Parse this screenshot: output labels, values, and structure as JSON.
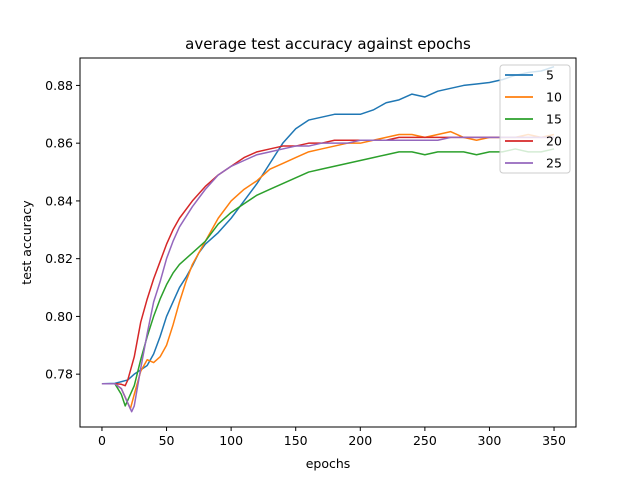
{
  "chart_data": {
    "type": "line",
    "title": "average test accuracy against epochs",
    "xlabel": "epochs",
    "ylabel": "test accuracy",
    "xlim": [
      -17,
      367
    ],
    "ylim": [
      0.7617,
      0.8895
    ],
    "x_ticks": [
      0,
      50,
      100,
      150,
      200,
      250,
      300,
      350
    ],
    "y_ticks": [
      0.78,
      0.8,
      0.82,
      0.84,
      0.86,
      0.88
    ],
    "y_tick_labels": [
      "0.78",
      "0.80",
      "0.82",
      "0.84",
      "0.86",
      "0.88"
    ],
    "x_tick_labels": [
      "0",
      "50",
      "100",
      "150",
      "200",
      "250",
      "300",
      "350"
    ],
    "grid": false,
    "legend_position": "upper right",
    "series": [
      {
        "name": "5",
        "color": "#1f77b4",
        "points": [
          [
            0,
            0.7767
          ],
          [
            10,
            0.7768
          ],
          [
            20,
            0.778
          ],
          [
            25,
            0.78
          ],
          [
            30,
            0.7815
          ],
          [
            35,
            0.783
          ],
          [
            40,
            0.787
          ],
          [
            45,
            0.793
          ],
          [
            50,
            0.8
          ],
          [
            55,
            0.805
          ],
          [
            60,
            0.81
          ],
          [
            65,
            0.8135
          ],
          [
            70,
            0.8175
          ],
          [
            75,
            0.822
          ],
          [
            80,
            0.825
          ],
          [
            90,
            0.829
          ],
          [
            100,
            0.834
          ],
          [
            110,
            0.84
          ],
          [
            120,
            0.846
          ],
          [
            130,
            0.853
          ],
          [
            140,
            0.86
          ],
          [
            150,
            0.865
          ],
          [
            160,
            0.868
          ],
          [
            170,
            0.869
          ],
          [
            180,
            0.87
          ],
          [
            190,
            0.87
          ],
          [
            200,
            0.87
          ],
          [
            210,
            0.8715
          ],
          [
            220,
            0.874
          ],
          [
            230,
            0.875
          ],
          [
            240,
            0.877
          ],
          [
            250,
            0.876
          ],
          [
            260,
            0.878
          ],
          [
            270,
            0.879
          ],
          [
            280,
            0.88
          ],
          [
            290,
            0.8805
          ],
          [
            300,
            0.881
          ],
          [
            310,
            0.882
          ],
          [
            320,
            0.8835
          ],
          [
            330,
            0.8845
          ],
          [
            340,
            0.885
          ],
          [
            350,
            0.8865
          ]
        ]
      },
      {
        "name": "10",
        "color": "#ff7f0e",
        "points": [
          [
            0,
            0.7767
          ],
          [
            10,
            0.7767
          ],
          [
            15,
            0.775
          ],
          [
            20,
            0.77
          ],
          [
            22,
            0.768
          ],
          [
            25,
            0.773
          ],
          [
            30,
            0.781
          ],
          [
            35,
            0.785
          ],
          [
            40,
            0.784
          ],
          [
            45,
            0.786
          ],
          [
            50,
            0.79
          ],
          [
            55,
            0.797
          ],
          [
            60,
            0.805
          ],
          [
            65,
            0.812
          ],
          [
            70,
            0.818
          ],
          [
            80,
            0.826
          ],
          [
            90,
            0.834
          ],
          [
            100,
            0.84
          ],
          [
            110,
            0.844
          ],
          [
            120,
            0.847
          ],
          [
            130,
            0.851
          ],
          [
            140,
            0.853
          ],
          [
            150,
            0.855
          ],
          [
            160,
            0.857
          ],
          [
            170,
            0.858
          ],
          [
            180,
            0.859
          ],
          [
            190,
            0.86
          ],
          [
            200,
            0.86
          ],
          [
            210,
            0.861
          ],
          [
            220,
            0.862
          ],
          [
            230,
            0.863
          ],
          [
            240,
            0.863
          ],
          [
            250,
            0.862
          ],
          [
            260,
            0.863
          ],
          [
            270,
            0.864
          ],
          [
            280,
            0.862
          ],
          [
            290,
            0.861
          ],
          [
            300,
            0.862
          ],
          [
            310,
            0.862
          ],
          [
            320,
            0.862
          ],
          [
            330,
            0.863
          ],
          [
            340,
            0.862
          ],
          [
            350,
            0.863
          ]
        ]
      },
      {
        "name": "15",
        "color": "#2ca02c",
        "points": [
          [
            0,
            0.7767
          ],
          [
            10,
            0.7767
          ],
          [
            15,
            0.773
          ],
          [
            18,
            0.769
          ],
          [
            20,
            0.771
          ],
          [
            25,
            0.776
          ],
          [
            30,
            0.785
          ],
          [
            35,
            0.793
          ],
          [
            40,
            0.8
          ],
          [
            45,
            0.806
          ],
          [
            50,
            0.811
          ],
          [
            55,
            0.815
          ],
          [
            60,
            0.818
          ],
          [
            70,
            0.822
          ],
          [
            80,
            0.826
          ],
          [
            90,
            0.832
          ],
          [
            100,
            0.836
          ],
          [
            110,
            0.839
          ],
          [
            120,
            0.842
          ],
          [
            130,
            0.844
          ],
          [
            140,
            0.846
          ],
          [
            150,
            0.848
          ],
          [
            160,
            0.85
          ],
          [
            170,
            0.851
          ],
          [
            180,
            0.852
          ],
          [
            190,
            0.853
          ],
          [
            200,
            0.854
          ],
          [
            210,
            0.855
          ],
          [
            220,
            0.856
          ],
          [
            230,
            0.857
          ],
          [
            240,
            0.857
          ],
          [
            250,
            0.856
          ],
          [
            260,
            0.857
          ],
          [
            270,
            0.857
          ],
          [
            280,
            0.857
          ],
          [
            290,
            0.856
          ],
          [
            300,
            0.857
          ],
          [
            310,
            0.857
          ],
          [
            320,
            0.858
          ],
          [
            330,
            0.857
          ],
          [
            340,
            0.857
          ],
          [
            350,
            0.858
          ]
        ]
      },
      {
        "name": "20",
        "color": "#d62728",
        "points": [
          [
            0,
            0.7767
          ],
          [
            10,
            0.7767
          ],
          [
            15,
            0.7765
          ],
          [
            18,
            0.776
          ],
          [
            20,
            0.778
          ],
          [
            25,
            0.786
          ],
          [
            30,
            0.798
          ],
          [
            35,
            0.806
          ],
          [
            40,
            0.813
          ],
          [
            45,
            0.819
          ],
          [
            50,
            0.825
          ],
          [
            55,
            0.83
          ],
          [
            60,
            0.834
          ],
          [
            70,
            0.84
          ],
          [
            80,
            0.845
          ],
          [
            90,
            0.849
          ],
          [
            100,
            0.852
          ],
          [
            110,
            0.855
          ],
          [
            120,
            0.857
          ],
          [
            130,
            0.858
          ],
          [
            140,
            0.859
          ],
          [
            150,
            0.859
          ],
          [
            160,
            0.86
          ],
          [
            170,
            0.86
          ],
          [
            180,
            0.861
          ],
          [
            190,
            0.861
          ],
          [
            200,
            0.861
          ],
          [
            210,
            0.861
          ],
          [
            220,
            0.861
          ],
          [
            230,
            0.862
          ],
          [
            240,
            0.862
          ],
          [
            250,
            0.862
          ],
          [
            260,
            0.862
          ],
          [
            270,
            0.862
          ],
          [
            280,
            0.862
          ],
          [
            290,
            0.862
          ],
          [
            300,
            0.862
          ],
          [
            310,
            0.862
          ],
          [
            320,
            0.862
          ],
          [
            330,
            0.862
          ],
          [
            340,
            0.862
          ],
          [
            350,
            0.862
          ]
        ]
      },
      {
        "name": "25",
        "color": "#9467bd",
        "points": [
          [
            0,
            0.7767
          ],
          [
            10,
            0.7767
          ],
          [
            15,
            0.775
          ],
          [
            20,
            0.77
          ],
          [
            23,
            0.767
          ],
          [
            25,
            0.769
          ],
          [
            30,
            0.782
          ],
          [
            35,
            0.794
          ],
          [
            40,
            0.805
          ],
          [
            45,
            0.812
          ],
          [
            50,
            0.82
          ],
          [
            55,
            0.826
          ],
          [
            60,
            0.831
          ],
          [
            70,
            0.838
          ],
          [
            80,
            0.844
          ],
          [
            90,
            0.849
          ],
          [
            100,
            0.852
          ],
          [
            110,
            0.854
          ],
          [
            120,
            0.856
          ],
          [
            130,
            0.857
          ],
          [
            140,
            0.858
          ],
          [
            150,
            0.859
          ],
          [
            160,
            0.859
          ],
          [
            170,
            0.86
          ],
          [
            180,
            0.86
          ],
          [
            190,
            0.86
          ],
          [
            200,
            0.861
          ],
          [
            210,
            0.861
          ],
          [
            220,
            0.861
          ],
          [
            230,
            0.861
          ],
          [
            240,
            0.861
          ],
          [
            250,
            0.861
          ],
          [
            260,
            0.861
          ],
          [
            270,
            0.862
          ],
          [
            280,
            0.862
          ],
          [
            290,
            0.862
          ],
          [
            300,
            0.862
          ],
          [
            310,
            0.862
          ],
          [
            320,
            0.862
          ],
          [
            330,
            0.862
          ],
          [
            340,
            0.862
          ],
          [
            350,
            0.862
          ]
        ]
      }
    ]
  }
}
